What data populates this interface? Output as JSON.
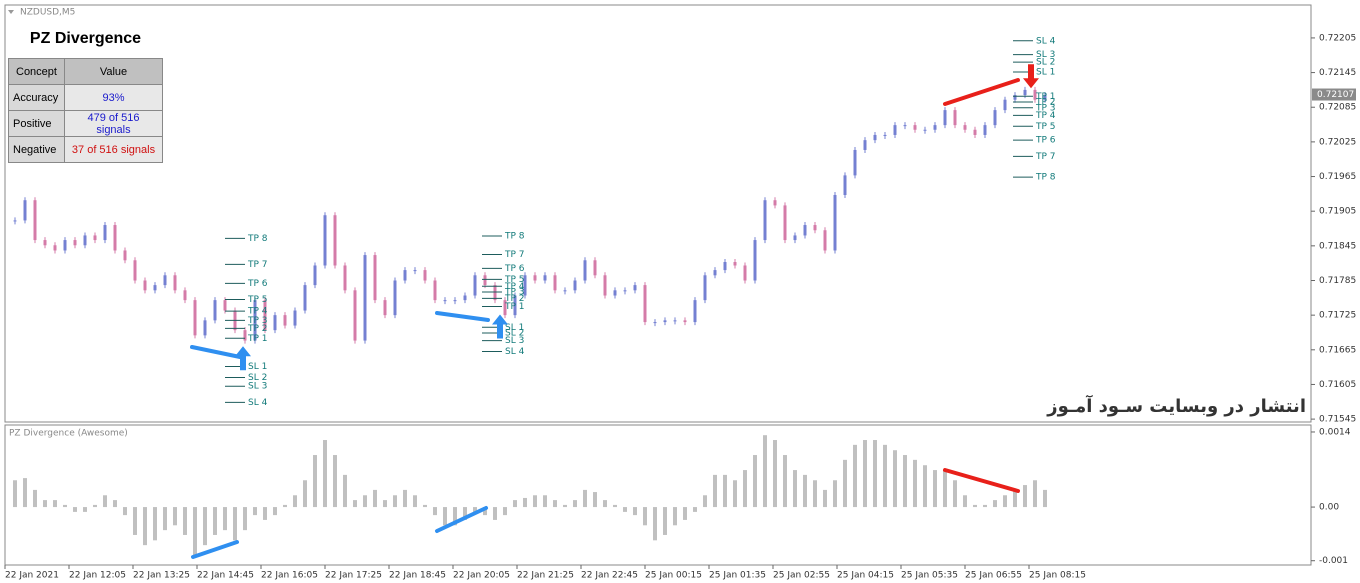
{
  "chart_data": [
    {
      "type": "candlestick",
      "title": "NZDUSD,M5",
      "up_color": "#7480d2",
      "down_color": "#d47ba8",
      "values": [
        0.71889,
        0.71924,
        0.71855,
        0.71846,
        0.71837,
        0.71855,
        0.71846,
        0.71863,
        0.71855,
        0.71881,
        0.71837,
        0.7182,
        0.71785,
        0.71768,
        0.71777,
        0.71794,
        0.71768,
        0.71751,
        0.7169,
        0.71716,
        0.71751,
        0.71733,
        0.71699,
        0.71681,
        0.71751,
        0.71699,
        0.71725,
        0.71707,
        0.71733,
        0.71777,
        0.71811,
        0.71898,
        0.71811,
        0.71768,
        0.71681,
        0.71829,
        0.71751,
        0.71725,
        0.71785,
        0.71803,
        0.71803,
        0.71785,
        0.71751,
        0.71751,
        0.71751,
        0.71759,
        0.71794,
        0.71777,
        0.71751,
        0.71725,
        0.71759,
        0.71794,
        0.71785,
        0.71794,
        0.71768,
        0.71768,
        0.71785,
        0.7182,
        0.71794,
        0.71759,
        0.71768,
        0.71768,
        0.71777,
        0.71713,
        0.71713,
        0.71716,
        0.71716,
        0.71713,
        0.71751,
        0.71794,
        0.71803,
        0.71817,
        0.71811,
        0.71785,
        0.71855,
        0.71924,
        0.71915,
        0.71855,
        0.71863,
        0.71881,
        0.71872,
        0.71837,
        0.71933,
        0.71967,
        0.72011,
        0.72028,
        0.72037,
        0.72037,
        0.72054,
        0.72054,
        0.72046,
        0.72046,
        0.72054,
        0.7208,
        0.72054,
        0.72046,
        0.72037,
        0.72054,
        0.7208,
        0.72098,
        0.72106,
        0.72115,
        0.72098,
        0.72106
      ],
      "ylim": [
        0.7154,
        0.72262
      ],
      "yticks": [
        0.72205,
        0.72145,
        0.72085,
        0.72025,
        0.71965,
        0.71905,
        0.71845,
        0.71785,
        0.71725,
        0.71665,
        0.71605,
        0.71545
      ],
      "current_price": 0.72107,
      "signals": [
        {
          "arrow": "up",
          "color": "#2f8ff0",
          "levels": [
            {
              "label": "TP 8",
              "value": 0.71858
            },
            {
              "label": "TP 7",
              "value": 0.71813
            },
            {
              "label": "TP 6",
              "value": 0.7178
            },
            {
              "label": "TP 5",
              "value": 0.71752
            },
            {
              "label": "TP 4",
              "value": 0.71732
            },
            {
              "label": "TP 3",
              "value": 0.71716
            },
            {
              "label": "TP 2",
              "value": 0.71702
            },
            {
              "label": "TP 1",
              "value": 0.71685
            },
            {
              "label": "SL 1",
              "value": 0.71636
            },
            {
              "label": "SL 2",
              "value": 0.71617
            },
            {
              "label": "SL 3",
              "value": 0.71602
            },
            {
              "label": "SL 4",
              "value": 0.71574
            }
          ]
        },
        {
          "arrow": "up",
          "color": "#2f8ff0",
          "levels": [
            {
              "label": "TP 8",
              "value": 0.71862
            },
            {
              "label": "TP 7",
              "value": 0.7183
            },
            {
              "label": "TP 6",
              "value": 0.71806
            },
            {
              "label": "TP 5",
              "value": 0.71787
            },
            {
              "label": "TP 4",
              "value": 0.71775
            },
            {
              "label": "TP 3",
              "value": 0.71765
            },
            {
              "label": "TP 2",
              "value": 0.71754
            },
            {
              "label": "TP 1",
              "value": 0.7174
            },
            {
              "label": "SL 1",
              "value": 0.71704
            },
            {
              "label": "SL 2",
              "value": 0.71694
            },
            {
              "label": "SL 3",
              "value": 0.71681
            },
            {
              "label": "SL 4",
              "value": 0.71662
            }
          ]
        },
        {
          "arrow": "down",
          "color": "#e8201a",
          "levels": [
            {
              "label": "SL 4",
              "value": 0.722
            },
            {
              "label": "SL 3",
              "value": 0.72176
            },
            {
              "label": "SL 2",
              "value": 0.72163
            },
            {
              "label": "SL 1",
              "value": 0.72146
            },
            {
              "label": "TP 1",
              "value": 0.72104
            },
            {
              "label": "TP 2",
              "value": 0.72094
            },
            {
              "label": "TP 3",
              "value": 0.72084
            },
            {
              "label": "TP 4",
              "value": 0.72071
            },
            {
              "label": "TP 5",
              "value": 0.72052
            },
            {
              "label": "TP 6",
              "value": 0.72028
            },
            {
              "label": "TP 7",
              "value": 0.72
            },
            {
              "label": "TP 8",
              "value": 0.71964
            }
          ]
        }
      ]
    },
    {
      "type": "bar",
      "title": "PZ Divergence (Awesome)",
      "color": "#c0c0c0",
      "values": [
        0.0005,
        0.00054,
        0.00032,
        0.00013,
        0.00013,
        4e-05,
        -9e-05,
        -9e-05,
        4e-05,
        0.00022,
        0.00013,
        -0.00015,
        -0.00052,
        -0.00071,
        -0.00062,
        -0.00043,
        -0.00034,
        -0.00052,
        -0.0009,
        -0.00071,
        -0.00052,
        -0.00043,
        -0.00062,
        -0.00043,
        -0.00015,
        -0.00024,
        -0.00015,
        4e-05,
        0.00022,
        0.0005,
        0.00097,
        0.00125,
        0.00097,
        0.0006,
        0.00013,
        0.00022,
        0.00032,
        0.00013,
        0.00022,
        0.00032,
        0.00022,
        4e-05,
        -0.00015,
        -0.00034,
        -0.00034,
        -0.00024,
        -9e-05,
        -0.00015,
        -0.00024,
        -0.00015,
        0.00013,
        0.00017,
        0.00022,
        0.00022,
        0.00013,
        4e-05,
        0.00013,
        0.00032,
        0.00028,
        0.00013,
        4e-05,
        -9e-05,
        -0.00015,
        -0.00034,
        -0.00062,
        -0.00052,
        -0.00034,
        -0.00024,
        -9e-05,
        0.00022,
        0.0006,
        0.0006,
        0.0005,
        0.00069,
        0.00097,
        0.00134,
        0.00125,
        0.00097,
        0.00069,
        0.0006,
        0.0005,
        0.00032,
        0.0005,
        0.00088,
        0.00116,
        0.00125,
        0.00125,
        0.00116,
        0.00106,
        0.00097,
        0.00088,
        0.00078,
        0.00069,
        0.00069,
        0.0005,
        0.00022,
        4e-05,
        4e-05,
        0.00013,
        0.00022,
        0.00032,
        0.00041,
        0.0005,
        0.00032
      ],
      "ylim": [
        -0.00108,
        0.00153
      ],
      "yticks": [
        0.0014,
        {
          "value": 0,
          "label": "0.00"
        },
        -0.001
      ],
      "x_labels": [
        "22 Jan 2021",
        "22 Jan 12:05",
        "22 Jan 13:25",
        "22 Jan 14:45",
        "22 Jan 16:05",
        "22 Jan 17:25",
        "22 Jan 18:45",
        "22 Jan 20:05",
        "22 Jan 21:25",
        "22 Jan 22:45",
        "25 Jan 00:15",
        "25 Jan 01:35",
        "25 Jan 02:55",
        "25 Jan 04:15",
        "25 Jan 05:35",
        "25 Jan 06:55",
        "25 Jan 08:15"
      ]
    }
  ],
  "info_panel": {
    "title": "PZ Divergence",
    "columns": [
      "Concept",
      "Value"
    ],
    "rows": [
      [
        "Accuracy",
        "93%"
      ],
      [
        "Positive",
        "479 of 516 signals"
      ],
      [
        "Negative",
        "37 of 516 signals"
      ]
    ]
  },
  "watermark": "انتشار در وبسایت سـود آمـوز"
}
